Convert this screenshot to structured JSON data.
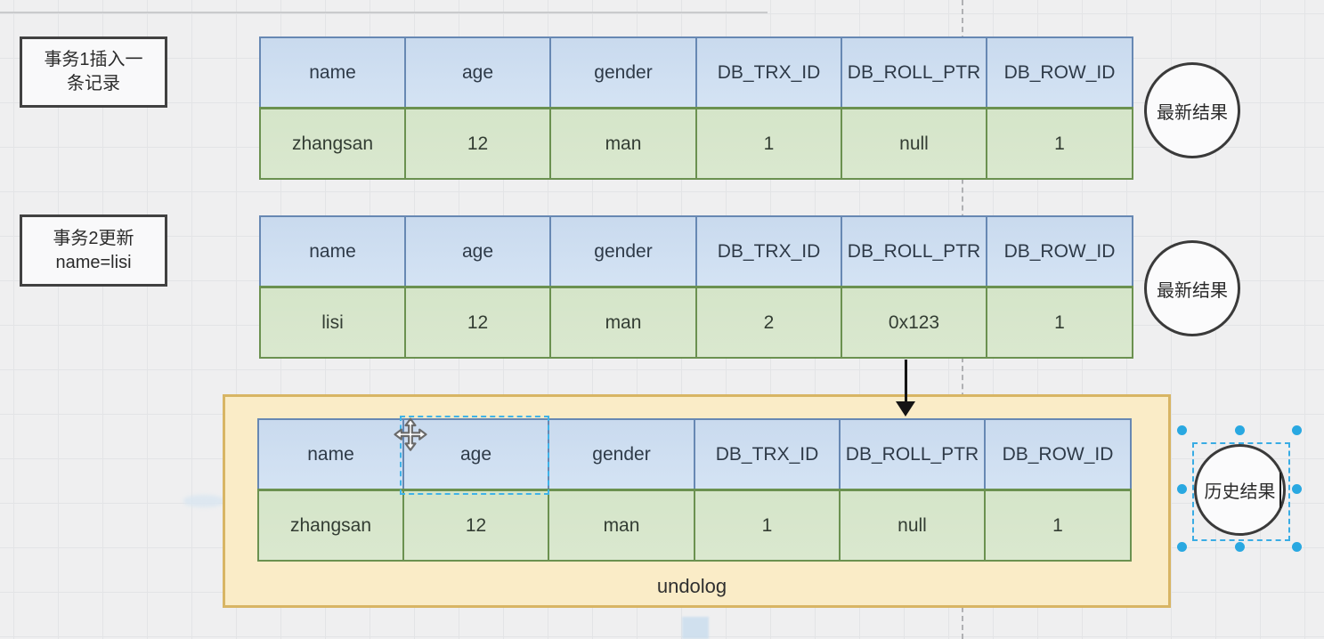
{
  "labels": {
    "tx1": {
      "line1": "事务1插入一",
      "line2": "条记录"
    },
    "tx2": {
      "line1": "事务2更新",
      "line2": "name=lisi"
    }
  },
  "table_columns": [
    "name",
    "age",
    "gender",
    "DB_TRX_ID",
    "DB_ROLL_PTR",
    "DB_ROW_ID"
  ],
  "table_rows": [
    [
      "zhangsan",
      "12",
      "man",
      "1",
      "null",
      "1"
    ],
    [
      "lisi",
      "12",
      "man",
      "2",
      "0x123",
      "1"
    ],
    [
      "zhangsan",
      "12",
      "man",
      "1",
      "null",
      "1"
    ]
  ],
  "badges": {
    "latest1": "最新结果",
    "latest2": "最新结果",
    "history": "历史结果"
  },
  "undolog": {
    "label": "undolog"
  },
  "colors": {
    "header_fill": "#cddcef",
    "header_border": "#6788b3",
    "row_fill": "#d7e6cb",
    "row_border": "#6b9150",
    "undolog_fill": "#faecc7",
    "undolog_border": "#d8b564",
    "selection_handle": "#29a8e1",
    "selection_dash": "#39ace4",
    "arrow": "#141414"
  }
}
